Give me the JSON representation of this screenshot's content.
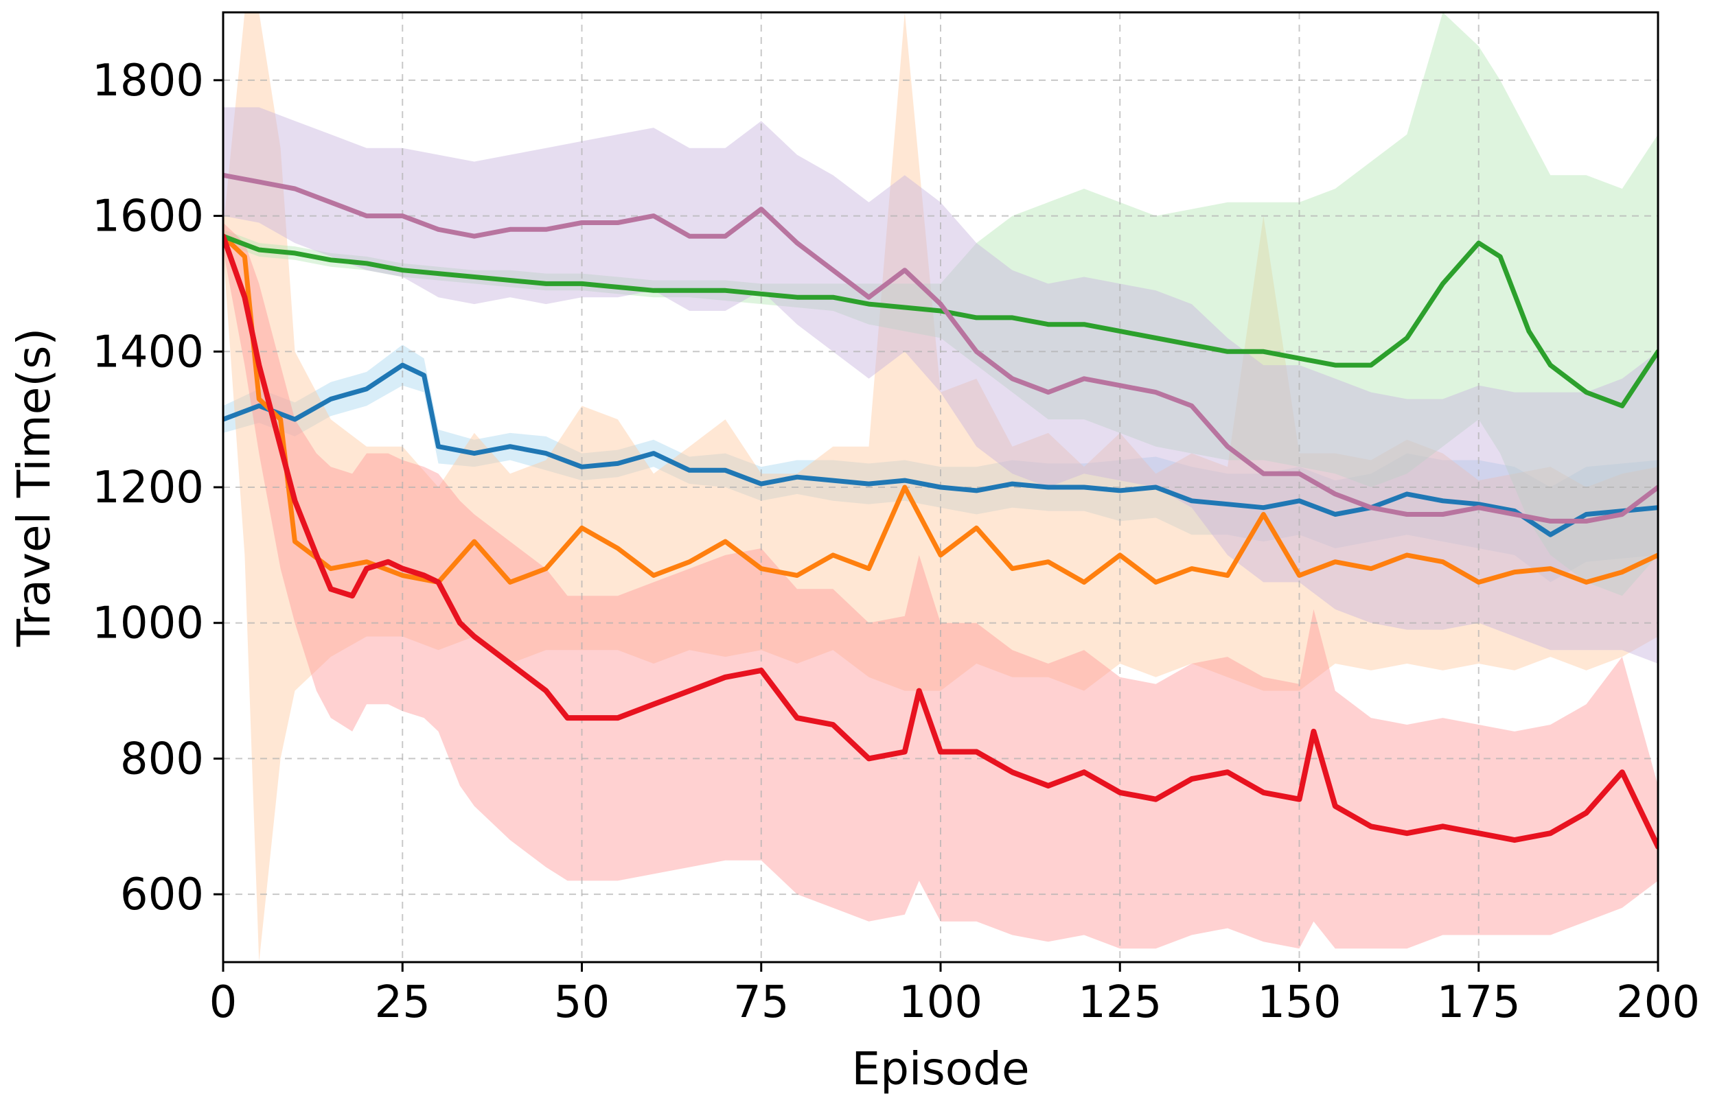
{
  "chart_data": {
    "type": "line",
    "xlabel": "Episode",
    "ylabel": "Travel Time(s)",
    "xlim": [
      0,
      200
    ],
    "ylim": [
      500,
      1900
    ],
    "xticks": [
      "0",
      "25",
      "50",
      "75",
      "100",
      "125",
      "150",
      "175",
      "200"
    ],
    "yticks": [
      "600",
      "800",
      "1000",
      "1200",
      "1400",
      "1600",
      "1800"
    ],
    "grid": true,
    "legend": "none",
    "series": [
      {
        "color": "#1f77b4",
        "band_color": "#a8d8f0",
        "x": [
          0,
          5,
          10,
          15,
          20,
          25,
          28,
          30,
          35,
          40,
          45,
          50,
          55,
          60,
          65,
          70,
          75,
          80,
          85,
          90,
          95,
          100,
          105,
          110,
          115,
          120,
          125,
          130,
          135,
          140,
          145,
          150,
          155,
          160,
          165,
          170,
          175,
          180,
          185,
          190,
          195,
          200
        ],
        "values": [
          1300,
          1320,
          1300,
          1330,
          1345,
          1380,
          1365,
          1260,
          1250,
          1260,
          1250,
          1230,
          1235,
          1250,
          1225,
          1225,
          1205,
          1215,
          1210,
          1205,
          1210,
          1200,
          1195,
          1205,
          1200,
          1200,
          1195,
          1200,
          1180,
          1175,
          1170,
          1180,
          1160,
          1170,
          1190,
          1180,
          1175,
          1165,
          1130,
          1160,
          1165,
          1170
        ],
        "lower": [
          1280,
          1295,
          1275,
          1305,
          1320,
          1350,
          1340,
          1235,
          1230,
          1240,
          1225,
          1210,
          1215,
          1230,
          1205,
          1200,
          1180,
          1190,
          1180,
          1175,
          1180,
          1170,
          1160,
          1170,
          1165,
          1165,
          1150,
          1155,
          1130,
          1130,
          1120,
          1130,
          1110,
          1120,
          1130,
          1120,
          1110,
          1100,
          1060,
          1090,
          1095,
          1100
        ],
        "upper": [
          1320,
          1345,
          1325,
          1355,
          1370,
          1410,
          1390,
          1285,
          1270,
          1280,
          1275,
          1250,
          1255,
          1270,
          1245,
          1250,
          1230,
          1240,
          1240,
          1235,
          1240,
          1230,
          1230,
          1240,
          1235,
          1235,
          1240,
          1245,
          1230,
          1220,
          1220,
          1230,
          1210,
          1220,
          1250,
          1240,
          1240,
          1230,
          1200,
          1230,
          1235,
          1240
        ]
      },
      {
        "color": "#ff7f0e",
        "band_color": "#ffc9a0",
        "x": [
          0,
          3,
          5,
          8,
          10,
          15,
          20,
          25,
          30,
          35,
          40,
          45,
          50,
          55,
          60,
          65,
          70,
          75,
          80,
          85,
          90,
          95,
          100,
          105,
          110,
          115,
          120,
          125,
          130,
          135,
          140,
          145,
          150,
          155,
          160,
          165,
          170,
          175,
          180,
          185,
          190,
          195,
          200
        ],
        "values": [
          1570,
          1540,
          1330,
          1300,
          1120,
          1080,
          1090,
          1070,
          1060,
          1120,
          1060,
          1080,
          1140,
          1110,
          1070,
          1090,
          1120,
          1080,
          1070,
          1100,
          1080,
          1200,
          1100,
          1140,
          1080,
          1090,
          1060,
          1100,
          1060,
          1080,
          1070,
          1160,
          1070,
          1090,
          1080,
          1100,
          1090,
          1060,
          1075,
          1080,
          1060,
          1075,
          1100
        ],
        "lower": [
          1550,
          1100,
          500,
          800,
          900,
          950,
          980,
          980,
          960,
          980,
          940,
          960,
          960,
          960,
          940,
          960,
          950,
          960,
          940,
          960,
          920,
          900,
          900,
          940,
          920,
          920,
          900,
          940,
          920,
          940,
          920,
          900,
          900,
          940,
          930,
          940,
          930,
          940,
          930,
          950,
          930,
          950,
          980
        ],
        "upper": [
          1580,
          1900,
          1900,
          1700,
          1400,
          1300,
          1260,
          1260,
          1200,
          1280,
          1220,
          1240,
          1320,
          1300,
          1220,
          1260,
          1300,
          1220,
          1220,
          1260,
          1260,
          1900,
          1340,
          1360,
          1260,
          1280,
          1230,
          1280,
          1220,
          1250,
          1230,
          1600,
          1250,
          1250,
          1240,
          1270,
          1250,
          1210,
          1220,
          1230,
          1200,
          1220,
          1230
        ]
      },
      {
        "color": "#2ca02c",
        "band_color": "#b6e6b6",
        "x": [
          0,
          5,
          10,
          15,
          20,
          25,
          30,
          35,
          40,
          45,
          50,
          55,
          60,
          65,
          70,
          75,
          80,
          85,
          90,
          95,
          100,
          105,
          110,
          115,
          120,
          125,
          130,
          135,
          140,
          145,
          150,
          155,
          160,
          165,
          170,
          175,
          178,
          182,
          185,
          190,
          195,
          200
        ],
        "values": [
          1570,
          1550,
          1545,
          1535,
          1530,
          1520,
          1515,
          1510,
          1505,
          1500,
          1500,
          1495,
          1490,
          1490,
          1490,
          1485,
          1480,
          1480,
          1470,
          1465,
          1460,
          1450,
          1450,
          1440,
          1440,
          1430,
          1420,
          1410,
          1400,
          1400,
          1390,
          1380,
          1380,
          1420,
          1500,
          1560,
          1540,
          1430,
          1380,
          1340,
          1320,
          1400
        ],
        "lower": [
          1560,
          1540,
          1535,
          1525,
          1520,
          1510,
          1505,
          1500,
          1495,
          1490,
          1490,
          1485,
          1480,
          1480,
          1475,
          1470,
          1465,
          1460,
          1440,
          1430,
          1420,
          1380,
          1340,
          1300,
          1300,
          1280,
          1260,
          1250,
          1240,
          1240,
          1230,
          1220,
          1200,
          1220,
          1260,
          1300,
          1250,
          1150,
          1100,
          1060,
          1040,
          1100
        ],
        "upper": [
          1580,
          1560,
          1555,
          1545,
          1540,
          1530,
          1525,
          1520,
          1520,
          1515,
          1515,
          1510,
          1505,
          1505,
          1505,
          1500,
          1500,
          1500,
          1500,
          1500,
          1500,
          1560,
          1600,
          1620,
          1640,
          1620,
          1600,
          1610,
          1620,
          1620,
          1620,
          1640,
          1680,
          1720,
          1900,
          1850,
          1800,
          1720,
          1660,
          1660,
          1640,
          1720
        ]
      },
      {
        "color": "#c0c0dd",
        "band_color": "#c8b4de",
        "line_color": "#b8749f",
        "x": [
          0,
          5,
          10,
          15,
          20,
          25,
          30,
          35,
          40,
          45,
          50,
          55,
          60,
          65,
          70,
          75,
          80,
          85,
          90,
          95,
          100,
          105,
          110,
          115,
          120,
          125,
          130,
          135,
          140,
          145,
          150,
          155,
          160,
          165,
          170,
          175,
          180,
          185,
          190,
          195,
          200
        ],
        "values": [
          1660,
          1650,
          1640,
          1620,
          1600,
          1600,
          1580,
          1570,
          1580,
          1580,
          1590,
          1590,
          1600,
          1570,
          1570,
          1610,
          1560,
          1520,
          1480,
          1520,
          1470,
          1400,
          1360,
          1340,
          1360,
          1350,
          1340,
          1320,
          1260,
          1220,
          1220,
          1190,
          1170,
          1160,
          1160,
          1170,
          1160,
          1150,
          1150,
          1160,
          1200
        ],
        "lower": [
          1600,
          1590,
          1560,
          1540,
          1520,
          1510,
          1480,
          1470,
          1480,
          1470,
          1480,
          1480,
          1490,
          1460,
          1460,
          1490,
          1440,
          1400,
          1360,
          1400,
          1340,
          1260,
          1220,
          1200,
          1220,
          1210,
          1200,
          1170,
          1100,
          1060,
          1060,
          1020,
          1000,
          990,
          990,
          1000,
          980,
          960,
          960,
          960,
          940
        ],
        "upper": [
          1760,
          1760,
          1740,
          1720,
          1700,
          1700,
          1690,
          1680,
          1690,
          1700,
          1710,
          1720,
          1730,
          1700,
          1700,
          1740,
          1690,
          1660,
          1620,
          1660,
          1620,
          1560,
          1520,
          1500,
          1510,
          1500,
          1490,
          1470,
          1420,
          1380,
          1380,
          1360,
          1340,
          1330,
          1330,
          1350,
          1340,
          1340,
          1340,
          1360,
          1400
        ]
      },
      {
        "color": "#e8121f",
        "band_color": "#ff9a9a",
        "x": [
          0,
          3,
          5,
          8,
          10,
          13,
          15,
          18,
          20,
          23,
          25,
          28,
          30,
          33,
          35,
          40,
          45,
          48,
          50,
          55,
          60,
          65,
          70,
          75,
          80,
          85,
          90,
          95,
          97,
          100,
          105,
          110,
          115,
          120,
          125,
          130,
          135,
          140,
          145,
          150,
          152,
          155,
          160,
          165,
          170,
          175,
          180,
          185,
          190,
          195,
          200
        ],
        "values": [
          1570,
          1480,
          1380,
          1260,
          1180,
          1100,
          1050,
          1040,
          1080,
          1090,
          1080,
          1070,
          1060,
          1000,
          980,
          940,
          900,
          860,
          860,
          860,
          880,
          900,
          920,
          930,
          860,
          850,
          800,
          810,
          900,
          810,
          810,
          780,
          760,
          780,
          750,
          740,
          770,
          780,
          750,
          740,
          840,
          730,
          700,
          690,
          700,
          690,
          680,
          690,
          720,
          780,
          670
        ],
        "lower": [
          1550,
          1380,
          1250,
          1080,
          1000,
          900,
          860,
          840,
          880,
          880,
          870,
          860,
          840,
          760,
          730,
          680,
          640,
          620,
          620,
          620,
          630,
          640,
          650,
          650,
          600,
          580,
          560,
          570,
          620,
          560,
          560,
          540,
          530,
          540,
          520,
          520,
          540,
          550,
          530,
          520,
          560,
          520,
          520,
          520,
          540,
          540,
          540,
          540,
          560,
          580,
          620
        ],
        "upper": [
          1590,
          1560,
          1500,
          1380,
          1300,
          1250,
          1230,
          1220,
          1250,
          1250,
          1240,
          1230,
          1220,
          1180,
          1160,
          1120,
          1080,
          1040,
          1040,
          1040,
          1060,
          1080,
          1100,
          1110,
          1050,
          1050,
          1000,
          1010,
          1100,
          1000,
          1000,
          960,
          940,
          960,
          920,
          910,
          940,
          950,
          920,
          910,
          1020,
          900,
          860,
          850,
          860,
          850,
          840,
          850,
          880,
          950,
          760
        ]
      }
    ]
  }
}
